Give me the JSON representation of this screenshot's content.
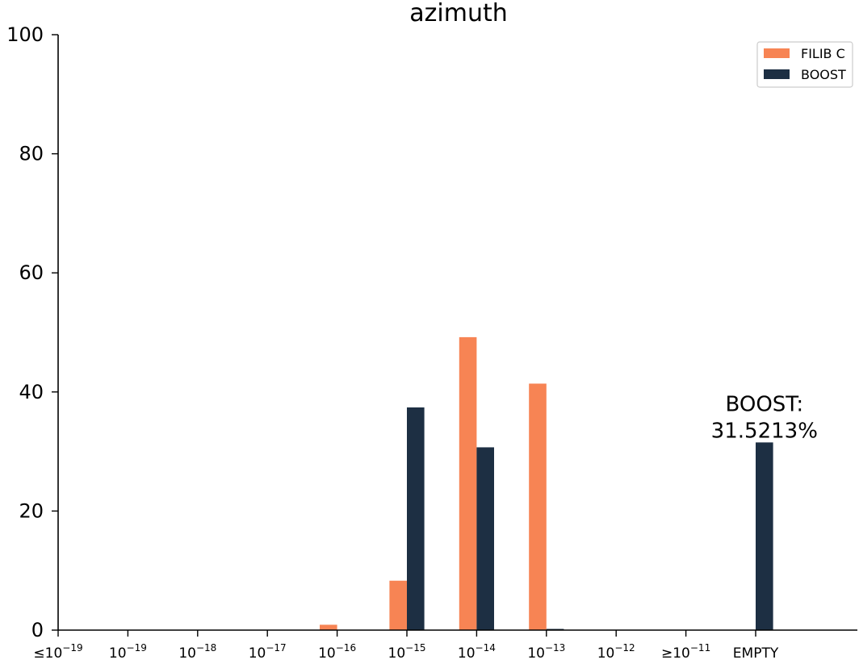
{
  "chart_data": {
    "type": "bar",
    "title": "azimuth",
    "xlabel": "",
    "ylabel": "",
    "ylim": [
      0,
      100
    ],
    "yticks": [
      "0",
      "20",
      "40",
      "60",
      "80",
      "100"
    ],
    "categories": [
      {
        "prefix": "≤",
        "base": "10",
        "exp": "−19"
      },
      {
        "prefix": "",
        "base": "10",
        "exp": "−19"
      },
      {
        "prefix": "",
        "base": "10",
        "exp": "−18"
      },
      {
        "prefix": "",
        "base": "10",
        "exp": "−17"
      },
      {
        "prefix": "",
        "base": "10",
        "exp": "−16"
      },
      {
        "prefix": "",
        "base": "10",
        "exp": "−15"
      },
      {
        "prefix": "",
        "base": "10",
        "exp": "−14"
      },
      {
        "prefix": "",
        "base": "10",
        "exp": "−13"
      },
      {
        "prefix": "",
        "base": "10",
        "exp": "−12"
      },
      {
        "prefix": "≥",
        "base": "10",
        "exp": "−11"
      },
      {
        "prefix": "",
        "base": "EMPTY",
        "exp": ""
      }
    ],
    "series": [
      {
        "name": "FILIB C",
        "color": "#f78454",
        "values": [
          0,
          0,
          0,
          0,
          0.9,
          8.3,
          49.2,
          41.4,
          0,
          0,
          0
        ]
      },
      {
        "name": "BOOST",
        "color": "#1d2f43",
        "values": [
          0,
          0,
          0,
          0,
          0,
          37.4,
          30.7,
          0.2,
          0,
          0,
          31.5213
        ]
      }
    ],
    "annotation": {
      "line1": "BOOST:",
      "line2": "31.5213%"
    },
    "legend": "top-right",
    "grid": false
  }
}
